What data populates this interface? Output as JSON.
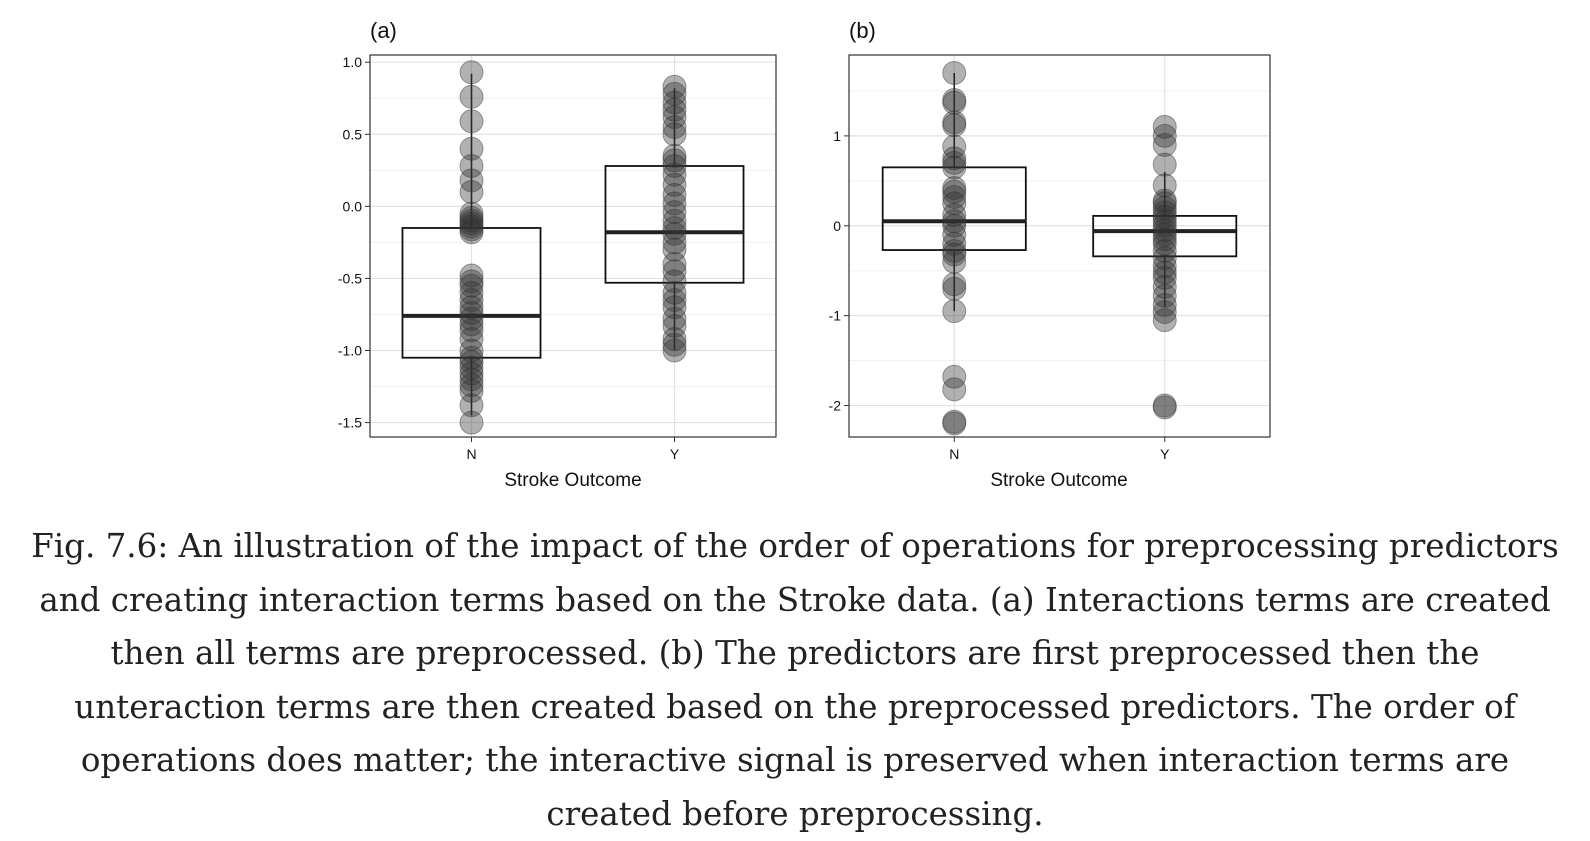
{
  "chart_data": [
    {
      "type": "boxplot",
      "panel_label": "(a)",
      "xlabel": "Stroke Outcome",
      "ylabel": "",
      "categories": [
        "N",
        "Y"
      ],
      "ylim": [
        -1.6,
        1.05
      ],
      "yticks": [
        1.0,
        0.5,
        0.0,
        -0.5,
        -1.0,
        -1.5
      ],
      "ytick_labels": [
        "1.0",
        "0.5",
        "0.0",
        "-0.5",
        "-1.0",
        "-1.5"
      ],
      "grid": true,
      "boxes": [
        {
          "category": "N",
          "q1": -1.05,
          "median": -0.76,
          "q3": -0.15,
          "whisker_low": -1.45,
          "whisker_high": 0.92
        },
        {
          "category": "Y",
          "q1": -0.53,
          "median": -0.18,
          "q3": 0.28,
          "whisker_low": -1.0,
          "whisker_high": 0.82
        }
      ],
      "points": [
        {
          "category": "N",
          "values": [
            0.93,
            0.76,
            0.59,
            0.4,
            0.28,
            0.18,
            0.1,
            -0.05,
            -0.08,
            -0.1,
            -0.12,
            -0.14,
            -0.16,
            -0.18,
            -0.48,
            -0.52,
            -0.55,
            -0.6,
            -0.65,
            -0.7,
            -0.74,
            -0.78,
            -0.82,
            -0.86,
            -0.92,
            -1.0,
            -1.05,
            -1.08,
            -1.12,
            -1.16,
            -1.2,
            -1.24,
            -1.28,
            -1.38,
            -1.5
          ]
        },
        {
          "category": "Y",
          "values": [
            0.83,
            0.78,
            0.72,
            0.67,
            0.62,
            0.55,
            0.5,
            0.35,
            0.32,
            0.28,
            0.22,
            0.15,
            0.08,
            0.02,
            -0.04,
            -0.1,
            -0.15,
            -0.19,
            -0.25,
            -0.3,
            -0.4,
            -0.45,
            -0.52,
            -0.6,
            -0.65,
            -0.7,
            -0.78,
            -0.83,
            -0.92,
            -0.96,
            -1.0
          ]
        }
      ]
    },
    {
      "type": "boxplot",
      "panel_label": "(b)",
      "xlabel": "Stroke Outcome",
      "ylabel": "",
      "categories": [
        "N",
        "Y"
      ],
      "ylim": [
        -2.35,
        1.9
      ],
      "yticks": [
        1,
        0,
        -1,
        -2
      ],
      "ytick_labels": [
        "1",
        "0",
        "-1",
        "-2"
      ],
      "grid": true,
      "boxes": [
        {
          "category": "N",
          "q1": -0.27,
          "median": 0.05,
          "q3": 0.65,
          "whisker_low": -0.95,
          "whisker_high": 1.7
        },
        {
          "category": "Y",
          "q1": -0.34,
          "median": -0.06,
          "q3": 0.11,
          "whisker_low": -0.9,
          "whisker_high": 0.6
        }
      ],
      "points": [
        {
          "category": "N",
          "values": [
            1.7,
            1.4,
            1.37,
            1.15,
            1.12,
            0.88,
            0.75,
            0.7,
            0.65,
            0.42,
            0.38,
            0.32,
            0.25,
            0.12,
            0.05,
            0.0,
            -0.1,
            -0.2,
            -0.28,
            -0.32,
            -0.4,
            -0.65,
            -0.7,
            -0.95,
            -1.68,
            -1.82,
            -2.18,
            -2.2
          ]
        },
        {
          "category": "Y",
          "values": [
            1.1,
            1.0,
            0.9,
            0.68,
            0.45,
            0.28,
            0.25,
            0.2,
            0.15,
            0.1,
            0.05,
            0.0,
            -0.05,
            -0.1,
            -0.15,
            -0.2,
            -0.28,
            -0.36,
            -0.45,
            -0.52,
            -0.58,
            -0.68,
            -0.78,
            -0.88,
            -0.96,
            -1.05,
            -2.0,
            -2.02
          ]
        }
      ]
    }
  ],
  "caption": "Fig. 7.6: An illustration of the impact of the order of operations for preprocessing predictors and creating interaction terms based on the Stroke data. (a) Interactions terms are created then all terms are preprocessed. (b) The predictors are first preprocessed then the unteraction terms are then created based on the preprocessed predictors. The order of operations does matter; the interactive signal is preserved when interaction terms are created before preprocessing."
}
